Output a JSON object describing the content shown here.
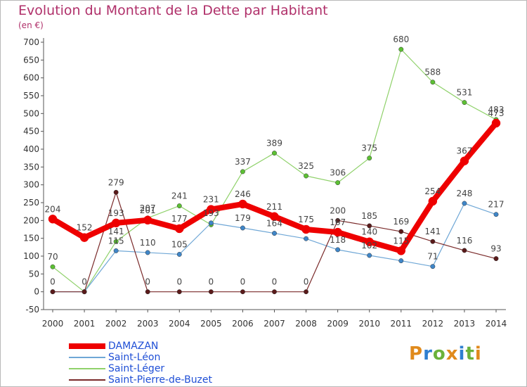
{
  "title": "Evolution du Montant de la Dette par Habitant",
  "unit": "(en €)",
  "logo": {
    "text": "Proxiti",
    "colors": [
      "#e08a1c",
      "#2f7fd0",
      "#6bb23a",
      "#e08a1c",
      "#2f7fd0",
      "#6bb23a",
      "#e08a1c"
    ]
  },
  "chart_data": {
    "type": "line",
    "x": [
      2000,
      2001,
      2002,
      2003,
      2004,
      2005,
      2006,
      2007,
      2008,
      2009,
      2010,
      2011,
      2012,
      2013,
      2014
    ],
    "ylim": [
      -50,
      700
    ],
    "yticks": [
      -50,
      0,
      50,
      100,
      150,
      200,
      250,
      300,
      350,
      400,
      450,
      500,
      550,
      600,
      650,
      700
    ],
    "grid": false,
    "legend": "bottom-left",
    "series": [
      {
        "name": "Saint-Léger",
        "color": "#8fd16a",
        "marker": "#5cc033",
        "width": 1.2,
        "values": [
          70,
          0,
          141,
          207,
          241,
          188,
          337,
          389,
          325,
          306,
          375,
          680,
          588,
          531,
          483
        ],
        "labels": [
          "70",
          "",
          "141",
          "207",
          "241",
          "",
          "337",
          "389",
          "325",
          "306",
          "375",
          "680",
          "588",
          "531",
          "483"
        ]
      },
      {
        "name": "Saint-Léon",
        "color": "#6fa7d6",
        "marker": "#3f86c8",
        "width": 1.2,
        "values": [
          0,
          0,
          115,
          110,
          105,
          193,
          179,
          164,
          149,
          118,
          102,
          87,
          71,
          248,
          217
        ],
        "labels": [
          "",
          "",
          "115",
          "110",
          "105",
          "193",
          "179",
          "164",
          "",
          "118",
          "102",
          "",
          "71",
          "248",
          "217"
        ]
      },
      {
        "name": "Saint-Pierre-de-Buzet",
        "color": "#7a2a2a",
        "marker": "#5a1a1a",
        "width": 1.2,
        "values": [
          0,
          0,
          279,
          0,
          0,
          0,
          0,
          0,
          0,
          200,
          185,
          169,
          141,
          116,
          93
        ],
        "labels": [
          "0",
          "0",
          "279",
          "0",
          "0",
          "0",
          "0",
          "0",
          "0",
          "200",
          "185",
          "169",
          "141",
          "116",
          "93"
        ]
      },
      {
        "name": "DAMAZAN",
        "color": "#ee0000",
        "marker": "#ee0000",
        "width": 8,
        "values": [
          204,
          152,
          193,
          201,
          177,
          231,
          246,
          211,
          175,
          167,
          140,
          115,
          254,
          367,
          473
        ],
        "labels": [
          "204",
          "152",
          "193",
          "201",
          "177",
          "231",
          "246",
          "211",
          "175",
          "167",
          "140",
          "115",
          "254",
          "367",
          "473"
        ]
      }
    ],
    "legend_order": [
      "DAMAZAN",
      "Saint-Léon",
      "Saint-Léger",
      "Saint-Pierre-de-Buzet"
    ]
  }
}
